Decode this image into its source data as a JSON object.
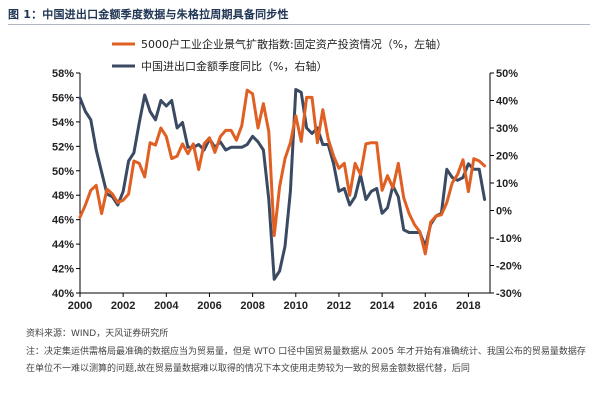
{
  "figure_title": "图 1：中国进出口金额季度数据与朱格拉周期具备同步性",
  "source_text": "资料来源：WIND，天风证券研究所",
  "note_text": "注：决定集运供需格局最准确的数据应当为贸易量，但是 WTO 口径中国贸易量数据从 2005 年才开始有准确统计、我国公布的贸易量数据存在单位不一难以测算的问题,故在贸易量数据难以取得的情况下本文使用走势较为一致的贸易金额数据代替，后同",
  "colors": {
    "orange": "#e06024",
    "navy": "#3b4a63"
  },
  "chart_data": {
    "type": "line",
    "xlim": [
      2000,
      2019
    ],
    "x_ticks": [
      2000,
      2002,
      2004,
      2006,
      2008,
      2010,
      2012,
      2014,
      2016,
      2018
    ],
    "y_left": {
      "lim": [
        40,
        58
      ],
      "ticks": [
        40,
        42,
        44,
        46,
        48,
        50,
        52,
        54,
        56,
        58
      ],
      "suffix": "%"
    },
    "y_right": {
      "lim": [
        -30,
        50
      ],
      "ticks": [
        -30,
        -20,
        -10,
        0,
        10,
        20,
        30,
        40,
        50
      ],
      "suffix": "%"
    },
    "legend_position": "top-left-inside",
    "series": [
      {
        "name": "5000户工业企业景气扩散指数:固定资产投资情况（%，左轴）",
        "axis": "left",
        "color": "#e06024",
        "points": [
          [
            2000.0,
            46.2
          ],
          [
            2000.25,
            47.2
          ],
          [
            2000.5,
            48.4
          ],
          [
            2000.75,
            48.8
          ],
          [
            2001.0,
            46.5
          ],
          [
            2001.25,
            48.5
          ],
          [
            2001.5,
            48.1
          ],
          [
            2001.75,
            47.4
          ],
          [
            2002.0,
            47.6
          ],
          [
            2002.25,
            48.1
          ],
          [
            2002.5,
            50.8
          ],
          [
            2002.75,
            50.6
          ],
          [
            2003.0,
            49.5
          ],
          [
            2003.25,
            52.3
          ],
          [
            2003.5,
            52.1
          ],
          [
            2003.75,
            53.5
          ],
          [
            2004.0,
            52.8
          ],
          [
            2004.25,
            51.0
          ],
          [
            2004.5,
            51.2
          ],
          [
            2004.75,
            52.2
          ],
          [
            2005.0,
            51.4
          ],
          [
            2005.25,
            52.2
          ],
          [
            2005.5,
            50.1
          ],
          [
            2005.75,
            52.2
          ],
          [
            2006.0,
            52.7
          ],
          [
            2006.25,
            51.5
          ],
          [
            2006.5,
            52.8
          ],
          [
            2006.75,
            53.3
          ],
          [
            2007.0,
            53.3
          ],
          [
            2007.25,
            52.5
          ],
          [
            2007.5,
            53.7
          ],
          [
            2007.75,
            56.6
          ],
          [
            2008.0,
            56.3
          ],
          [
            2008.25,
            53.5
          ],
          [
            2008.5,
            55.5
          ],
          [
            2008.75,
            53.2
          ],
          [
            2009.0,
            44.7
          ],
          [
            2009.25,
            48.7
          ],
          [
            2009.5,
            51.0
          ],
          [
            2009.75,
            52.3
          ],
          [
            2010.0,
            54.5
          ],
          [
            2010.25,
            52.4
          ],
          [
            2010.5,
            56.0
          ],
          [
            2010.75,
            56.0
          ],
          [
            2011.0,
            52.3
          ],
          [
            2011.25,
            55.0
          ],
          [
            2011.5,
            52.6
          ],
          [
            2011.75,
            51.2
          ],
          [
            2012.0,
            50.2
          ],
          [
            2012.25,
            50.6
          ],
          [
            2012.5,
            48.0
          ],
          [
            2012.75,
            50.6
          ],
          [
            2013.0,
            49.7
          ],
          [
            2013.25,
            52.2
          ],
          [
            2013.5,
            52.3
          ],
          [
            2013.75,
            52.3
          ],
          [
            2014.0,
            48.4
          ],
          [
            2014.25,
            49.6
          ],
          [
            2014.5,
            48.6
          ],
          [
            2014.75,
            50.6
          ],
          [
            2015.0,
            47.8
          ],
          [
            2015.25,
            46.5
          ],
          [
            2015.5,
            45.6
          ],
          [
            2015.75,
            45.0
          ],
          [
            2016.0,
            43.2
          ],
          [
            2016.25,
            45.8
          ],
          [
            2016.5,
            46.3
          ],
          [
            2016.75,
            46.4
          ],
          [
            2017.0,
            47.4
          ],
          [
            2017.25,
            49.0
          ],
          [
            2017.5,
            49.7
          ],
          [
            2017.75,
            50.9
          ],
          [
            2018.0,
            48.3
          ],
          [
            2018.25,
            51.0
          ],
          [
            2018.5,
            50.8
          ],
          [
            2018.75,
            50.4
          ]
        ]
      },
      {
        "name": "中国进出口金额季度同比（%，右轴）",
        "axis": "right",
        "color": "#3b4a63",
        "points": [
          [
            2000.0,
            41
          ],
          [
            2000.25,
            36
          ],
          [
            2000.5,
            33
          ],
          [
            2000.75,
            22
          ],
          [
            2001.0,
            14
          ],
          [
            2001.25,
            6
          ],
          [
            2001.5,
            5
          ],
          [
            2001.75,
            2
          ],
          [
            2002.0,
            7
          ],
          [
            2002.25,
            18
          ],
          [
            2002.5,
            21
          ],
          [
            2002.75,
            32
          ],
          [
            2003.0,
            42
          ],
          [
            2003.25,
            36
          ],
          [
            2003.5,
            33
          ],
          [
            2003.75,
            40
          ],
          [
            2004.0,
            38
          ],
          [
            2004.25,
            40
          ],
          [
            2004.5,
            30
          ],
          [
            2004.75,
            32
          ],
          [
            2005.0,
            23
          ],
          [
            2005.25,
            23
          ],
          [
            2005.5,
            24
          ],
          [
            2005.75,
            22
          ],
          [
            2006.0,
            26
          ],
          [
            2006.25,
            23
          ],
          [
            2006.5,
            25
          ],
          [
            2006.75,
            22
          ],
          [
            2007.0,
            23
          ],
          [
            2007.25,
            23
          ],
          [
            2007.5,
            23
          ],
          [
            2007.75,
            24
          ],
          [
            2008.0,
            27
          ],
          [
            2008.25,
            25
          ],
          [
            2008.5,
            22
          ],
          [
            2008.75,
            4
          ],
          [
            2009.0,
            -25
          ],
          [
            2009.25,
            -22
          ],
          [
            2009.5,
            -13
          ],
          [
            2009.75,
            7
          ],
          [
            2010.0,
            44
          ],
          [
            2010.25,
            43
          ],
          [
            2010.5,
            30
          ],
          [
            2010.75,
            28
          ],
          [
            2011.0,
            30
          ],
          [
            2011.25,
            24
          ],
          [
            2011.5,
            24
          ],
          [
            2011.75,
            17
          ],
          [
            2012.0,
            7
          ],
          [
            2012.25,
            8
          ],
          [
            2012.5,
            2
          ],
          [
            2012.75,
            5
          ],
          [
            2013.0,
            13
          ],
          [
            2013.25,
            4
          ],
          [
            2013.5,
            7
          ],
          [
            2013.75,
            8
          ],
          [
            2014.0,
            -1
          ],
          [
            2014.25,
            1
          ],
          [
            2014.5,
            9
          ],
          [
            2014.75,
            5
          ],
          [
            2015.0,
            -7
          ],
          [
            2015.25,
            -8
          ],
          [
            2015.5,
            -8
          ],
          [
            2015.75,
            -8
          ],
          [
            2016.0,
            -13
          ],
          [
            2016.25,
            -5
          ],
          [
            2016.5,
            -2
          ],
          [
            2016.75,
            -1
          ],
          [
            2017.0,
            15
          ],
          [
            2017.25,
            12
          ],
          [
            2017.5,
            11
          ],
          [
            2017.75,
            12
          ],
          [
            2018.0,
            17
          ],
          [
            2018.25,
            15
          ],
          [
            2018.5,
            15
          ],
          [
            2018.75,
            4
          ]
        ]
      }
    ]
  }
}
